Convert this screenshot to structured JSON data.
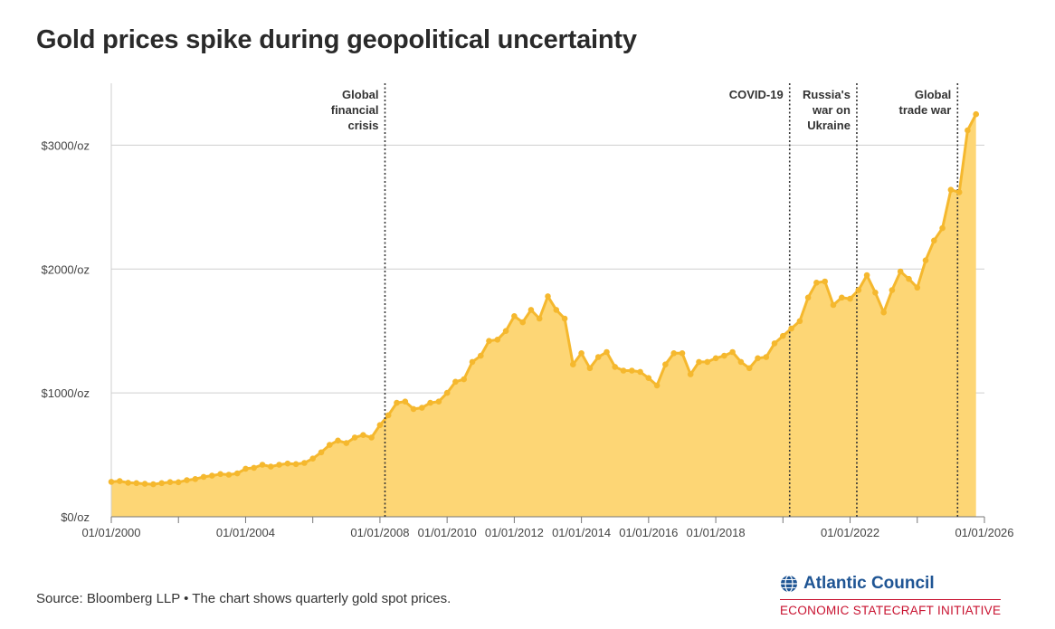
{
  "title": "Gold prices spike during geopolitical uncertainty",
  "source": "Source: Bloomberg LLP • The chart shows quarterly gold spot prices.",
  "brand": {
    "name": "Atlantic Council",
    "subtitle": "ECONOMIC STATECRAFT INITIATIVE",
    "icon": "globe-icon",
    "color": "#1f5594",
    "subtitle_color": "#c8102e"
  },
  "chart_data": {
    "type": "area",
    "title": "Gold prices spike during geopolitical uncertainty",
    "xlabel": "",
    "ylabel": "",
    "x_start_year": 2000,
    "x_step_years": 0.25,
    "xlim": [
      2000,
      2026
    ],
    "ylim": [
      0,
      3500
    ],
    "grid": true,
    "colors": {
      "line": "#f5b82e",
      "fill": "#fdd675"
    },
    "y_ticks": [
      {
        "value": 0,
        "label": "$0/oz"
      },
      {
        "value": 1000,
        "label": "$1000/oz"
      },
      {
        "value": 2000,
        "label": "$2000/oz"
      },
      {
        "value": 3000,
        "label": "$3000/oz"
      }
    ],
    "x_ticks": [
      {
        "value": 2000,
        "label": "01/01/2000"
      },
      {
        "value": 2004,
        "label": "01/01/2004"
      },
      {
        "value": 2008,
        "label": "01/01/2008"
      },
      {
        "value": 2010,
        "label": "01/01/2010"
      },
      {
        "value": 2012,
        "label": "01/01/2012"
      },
      {
        "value": 2014,
        "label": "01/01/2014"
      },
      {
        "value": 2016,
        "label": "01/01/2016"
      },
      {
        "value": 2018,
        "label": "01/01/2018"
      },
      {
        "value": 2022,
        "label": "01/01/2022"
      },
      {
        "value": 2026,
        "label": "01/01/2026"
      }
    ],
    "x_minor_ticks": [
      2002,
      2006,
      2020,
      2024
    ],
    "annotations": [
      {
        "x": 2008.15,
        "lines": [
          "Global",
          "financial",
          "crisis"
        ]
      },
      {
        "x": 2020.2,
        "lines": [
          "COVID-19"
        ]
      },
      {
        "x": 2022.2,
        "lines": [
          "Russia's",
          "war on",
          "Ukraine"
        ]
      },
      {
        "x": 2025.2,
        "lines": [
          "Global",
          "trade war"
        ]
      }
    ],
    "values": [
      282,
      288,
      275,
      272,
      266,
      262,
      272,
      280,
      279,
      295,
      305,
      322,
      332,
      345,
      340,
      350,
      388,
      395,
      420,
      405,
      420,
      430,
      425,
      435,
      470,
      520,
      580,
      615,
      595,
      640,
      660,
      640,
      740,
      820,
      920,
      930,
      870,
      880,
      920,
      930,
      1000,
      1090,
      1110,
      1250,
      1300,
      1420,
      1430,
      1500,
      1620,
      1570,
      1670,
      1600,
      1780,
      1670,
      1600,
      1230,
      1320,
      1200,
      1290,
      1330,
      1210,
      1180,
      1180,
      1170,
      1120,
      1060,
      1230,
      1320,
      1320,
      1150,
      1250,
      1250,
      1280,
      1300,
      1330,
      1250,
      1200,
      1280,
      1290,
      1400,
      1460,
      1520,
      1580,
      1770,
      1890,
      1900,
      1710,
      1770,
      1760,
      1830,
      1950,
      1810,
      1650,
      1830,
      1980,
      1920,
      1850,
      2070,
      2230,
      2330,
      2640,
      2620,
      3120,
      3250
    ]
  }
}
